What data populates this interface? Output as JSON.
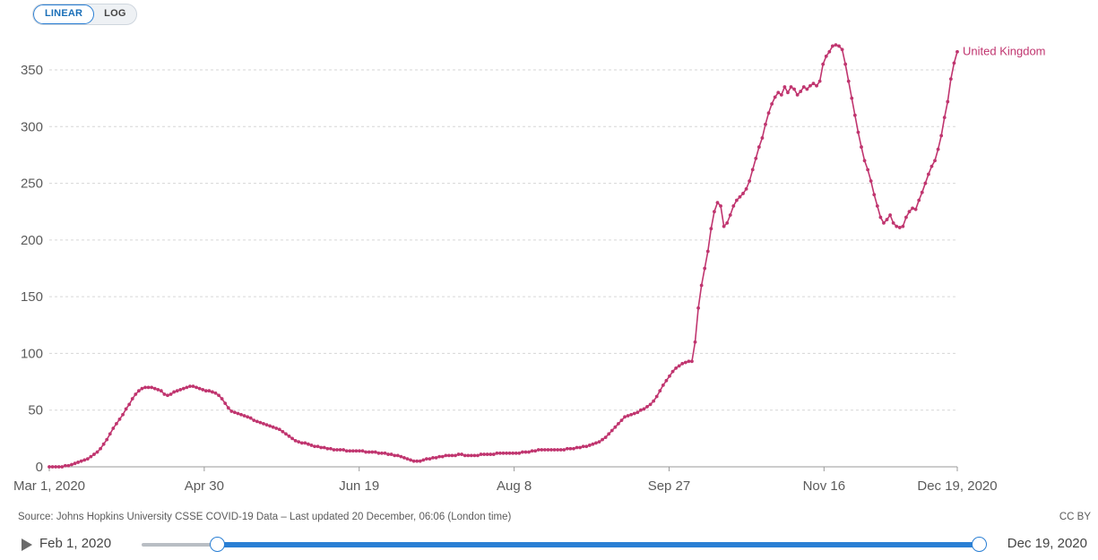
{
  "scale_toggle": {
    "linear_label": "LINEAR",
    "log_label": "LOG",
    "selected": "LINEAR"
  },
  "colors": {
    "series": "#c0356f",
    "accent": "#2a7fd4",
    "grid": "#d6d6d6"
  },
  "chart_data": {
    "type": "line",
    "y_ticks": [
      0,
      50,
      100,
      150,
      200,
      250,
      300,
      350
    ],
    "x_tick_labels": [
      "Mar 1, 2020",
      "Apr 30",
      "Jun 19",
      "Aug 8",
      "Sep 27",
      "Nov 16",
      "Dec 19, 2020"
    ],
    "ylim": [
      0,
      375
    ],
    "grid": true,
    "series": [
      {
        "name": "United Kingdom",
        "x_start": "2020-03-01",
        "x_end": "2020-12-19",
        "values": [
          0,
          0,
          0,
          0,
          0,
          1,
          1,
          2,
          3,
          4,
          5,
          6,
          7,
          9,
          11,
          13,
          16,
          20,
          24,
          29,
          34,
          38,
          42,
          46,
          51,
          55,
          60,
          64,
          67,
          69,
          70,
          70,
          70,
          69,
          68,
          67,
          64,
          63,
          64,
          66,
          67,
          68,
          69,
          70,
          71,
          71,
          70,
          69,
          68,
          67,
          67,
          66,
          65,
          63,
          60,
          56,
          52,
          49,
          48,
          47,
          46,
          45,
          44,
          43,
          41,
          40,
          39,
          38,
          37,
          36,
          35,
          34,
          33,
          31,
          29,
          27,
          25,
          23,
          22,
          21,
          21,
          20,
          19,
          18,
          18,
          17,
          17,
          16,
          16,
          15,
          15,
          15,
          15,
          14,
          14,
          14,
          14,
          14,
          14,
          13,
          13,
          13,
          13,
          12,
          12,
          12,
          11,
          11,
          10,
          10,
          9,
          8,
          7,
          6,
          5,
          5,
          5,
          6,
          7,
          7,
          8,
          8,
          9,
          9,
          10,
          10,
          10,
          10,
          11,
          11,
          10,
          10,
          10,
          10,
          10,
          11,
          11,
          11,
          11,
          11,
          12,
          12,
          12,
          12,
          12,
          12,
          12,
          12,
          13,
          13,
          13,
          14,
          14,
          15,
          15,
          15,
          15,
          15,
          15,
          15,
          15,
          15,
          16,
          16,
          16,
          17,
          17,
          18,
          18,
          19,
          20,
          21,
          22,
          24,
          26,
          29,
          32,
          35,
          38,
          41,
          44,
          45,
          46,
          47,
          48,
          50,
          51,
          53,
          55,
          58,
          62,
          67,
          72,
          76,
          80,
          84,
          87,
          89,
          91,
          92,
          93,
          93,
          110,
          140,
          160,
          175,
          190,
          210,
          225,
          233,
          230,
          212,
          215,
          222,
          230,
          235,
          238,
          241,
          245,
          252,
          262,
          272,
          282,
          290,
          302,
          312,
          320,
          326,
          330,
          328,
          335,
          330,
          335,
          333,
          328,
          331,
          335,
          333,
          336,
          338,
          336,
          340,
          355,
          362,
          366,
          371,
          372,
          371,
          368,
          355,
          340,
          325,
          310,
          295,
          282,
          270,
          262,
          252,
          240,
          230,
          220,
          215,
          218,
          222,
          215,
          212,
          211,
          212,
          220,
          225,
          228,
          227,
          235,
          242,
          250,
          258,
          265,
          270,
          280,
          292,
          308,
          322,
          342,
          356,
          366
        ]
      }
    ]
  },
  "footer": {
    "source": "Source: Johns Hopkins University CSSE COVID-19 Data – Last updated 20 December, 06:06 (London time)",
    "license": "CC BY"
  },
  "timeline": {
    "start_label": "Feb 1, 2020",
    "end_label": "Dec 19, 2020"
  }
}
